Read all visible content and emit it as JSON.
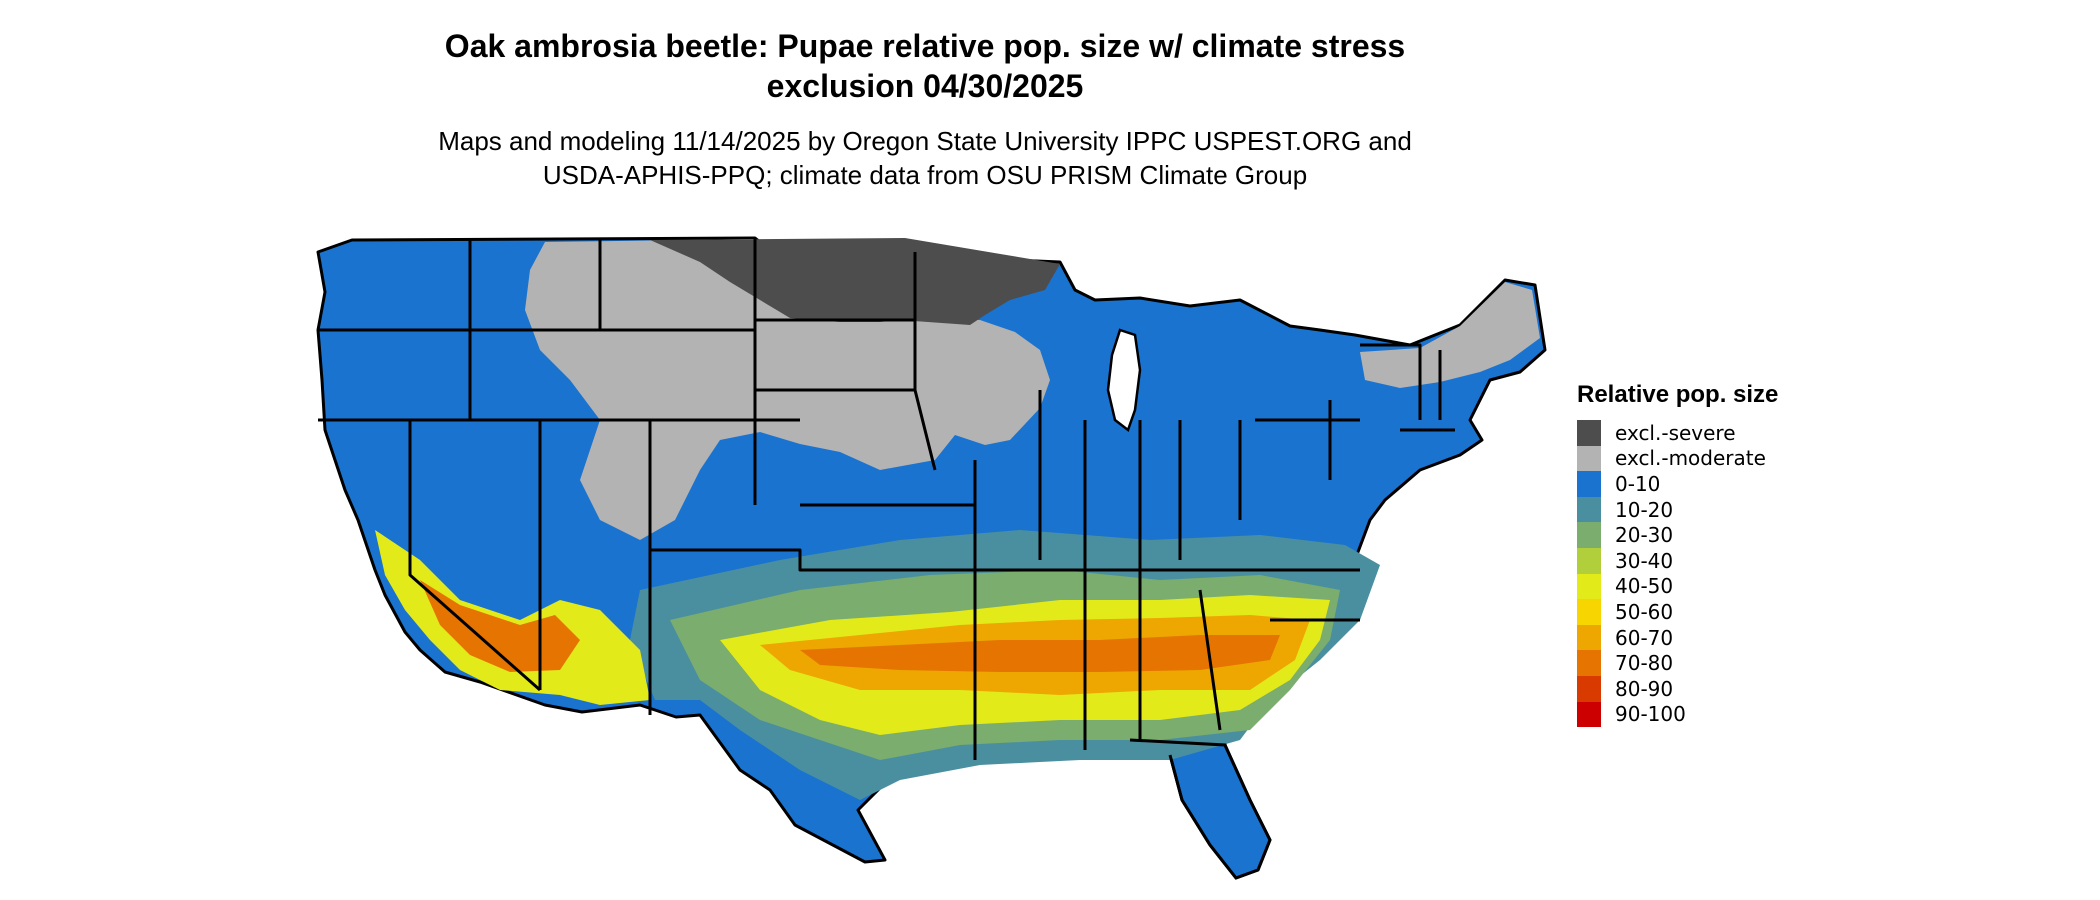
{
  "title": {
    "line1": "Oak ambrosia beetle: Pupae relative pop. size w/ climate stress",
    "line2": "exclusion 04/30/2025"
  },
  "subtitle": {
    "line1": "Maps and modeling 11/14/2025 by Oregon State University IPPC USPEST.ORG and",
    "line2": "USDA-APHIS-PPQ; climate data from OSU PRISM Climate Group"
  },
  "legend": {
    "title": "Relative pop. size",
    "items": [
      {
        "label": "excl.-severe",
        "color": "#4d4d4d"
      },
      {
        "label": "excl.-moderate",
        "color": "#b3b3b3"
      },
      {
        "label": "0-10",
        "color": "#1a73cf"
      },
      {
        "label": "10-20",
        "color": "#4a8fa0"
      },
      {
        "label": "20-30",
        "color": "#7aad6e"
      },
      {
        "label": "30-40",
        "color": "#b0cf3a"
      },
      {
        "label": "40-50",
        "color": "#e3ea1a"
      },
      {
        "label": "50-60",
        "color": "#f6d500"
      },
      {
        "label": "60-70",
        "color": "#eda700"
      },
      {
        "label": "70-80",
        "color": "#e57400"
      },
      {
        "label": "80-90",
        "color": "#d93a00"
      },
      {
        "label": "90-100",
        "color": "#cc0000"
      }
    ]
  }
}
